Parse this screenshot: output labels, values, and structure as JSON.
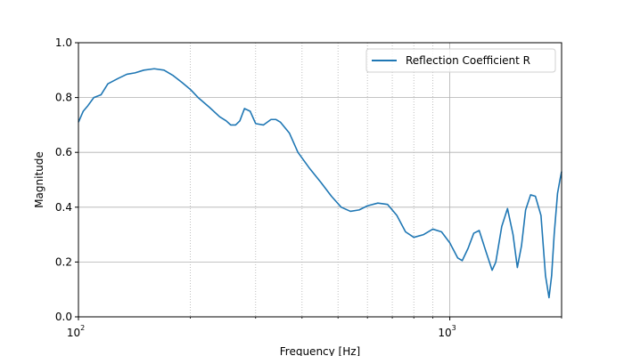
{
  "chart_data": {
    "type": "line",
    "title": "",
    "xlabel": "Frequency [Hz]",
    "ylabel": "Magnitude",
    "xscale": "log",
    "xlim": [
      100,
      2000
    ],
    "ylim": [
      0.0,
      1.0
    ],
    "x_major_ticks": [
      {
        "value": 100,
        "base": "10",
        "exp": "2"
      },
      {
        "value": 1000,
        "base": "10",
        "exp": "3"
      }
    ],
    "x_minor_ticks": [
      200,
      300,
      400,
      500,
      600,
      700,
      800,
      900,
      2000
    ],
    "y_ticks": [
      {
        "value": 0.0,
        "label": "0.0"
      },
      {
        "value": 0.2,
        "label": "0.2"
      },
      {
        "value": 0.4,
        "label": "0.4"
      },
      {
        "value": 0.6,
        "label": "0.6"
      },
      {
        "value": 0.8,
        "label": "0.8"
      },
      {
        "value": 1.0,
        "label": "1.0"
      }
    ],
    "grid": {
      "y_major": true,
      "x_major": true,
      "x_minor": "dotted"
    },
    "legend": {
      "location": "upper right",
      "entries": [
        "Reflection Coefficient R"
      ]
    },
    "series": [
      {
        "name": "Reflection Coefficient R",
        "color": "#1f77b4",
        "x": [
          100,
          103,
          106,
          110,
          115,
          120,
          128,
          135,
          142,
          150,
          160,
          170,
          180,
          190,
          200,
          210,
          225,
          240,
          250,
          257,
          265,
          272,
          280,
          290,
          300,
          315,
          330,
          340,
          350,
          370,
          390,
          420,
          450,
          480,
          510,
          540,
          570,
          600,
          640,
          680,
          720,
          760,
          800,
          850,
          900,
          950,
          1000,
          1050,
          1080,
          1120,
          1160,
          1200,
          1250,
          1300,
          1330,
          1380,
          1430,
          1480,
          1520,
          1560,
          1600,
          1650,
          1700,
          1760,
          1810,
          1850,
          1880,
          1910,
          1950,
          1980,
          2000
        ],
        "y": [
          0.71,
          0.75,
          0.77,
          0.8,
          0.81,
          0.85,
          0.87,
          0.885,
          0.89,
          0.9,
          0.905,
          0.9,
          0.88,
          0.855,
          0.83,
          0.8,
          0.765,
          0.73,
          0.715,
          0.7,
          0.7,
          0.715,
          0.76,
          0.75,
          0.705,
          0.7,
          0.72,
          0.72,
          0.71,
          0.67,
          0.6,
          0.54,
          0.49,
          0.44,
          0.4,
          0.385,
          0.39,
          0.405,
          0.415,
          0.41,
          0.37,
          0.31,
          0.29,
          0.3,
          0.32,
          0.31,
          0.27,
          0.215,
          0.205,
          0.25,
          0.305,
          0.315,
          0.24,
          0.17,
          0.2,
          0.33,
          0.395,
          0.3,
          0.18,
          0.26,
          0.39,
          0.445,
          0.44,
          0.37,
          0.15,
          0.07,
          0.15,
          0.3,
          0.45,
          0.5,
          0.53
        ]
      }
    ]
  }
}
